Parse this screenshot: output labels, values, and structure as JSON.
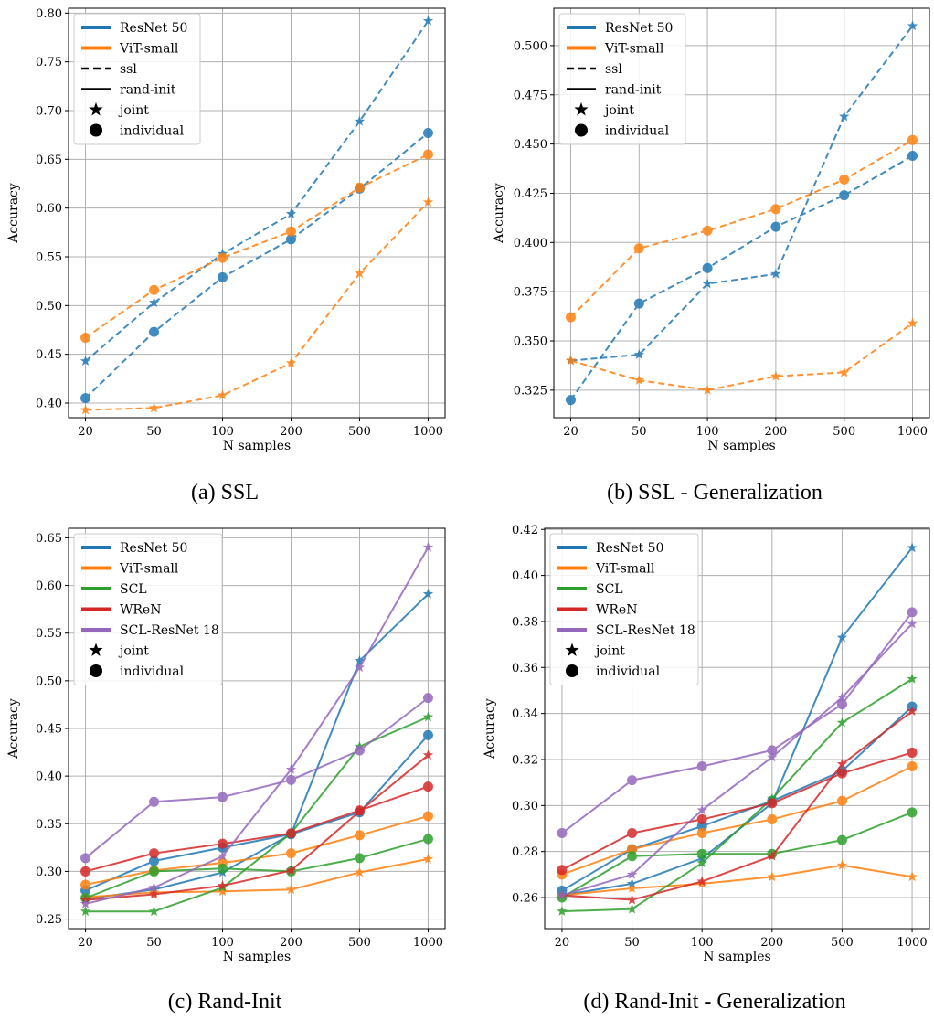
{
  "colors": {
    "ResNet 50": "#1f77b4",
    "ViT-small": "#ff7f0e",
    "SCL": "#2ca02c",
    "WReN": "#d62728",
    "SCL-ResNet 18": "#9467bd"
  },
  "chart_data": [
    {
      "type": "line",
      "caption": "(a) SSL",
      "xlabel": "N samples",
      "ylabel": "Accuracy",
      "categories": [
        "20",
        "50",
        "100",
        "200",
        "500",
        "1000"
      ],
      "yticks": [
        "0.40",
        "0.45",
        "0.50",
        "0.55",
        "0.60",
        "0.65",
        "0.70",
        "0.75",
        "0.80"
      ],
      "ylim": [
        0.385,
        0.805
      ],
      "grid": true,
      "legend_position": "top-left",
      "legend": [
        {
          "label": "ResNet 50",
          "kind": "color",
          "color": "#1f77b4"
        },
        {
          "label": "ViT-small",
          "kind": "color",
          "color": "#ff7f0e"
        },
        {
          "label": "ssl",
          "kind": "dashed"
        },
        {
          "label": "rand-init",
          "kind": "solid"
        },
        {
          "label": "joint",
          "kind": "star"
        },
        {
          "label": "individual",
          "kind": "circle"
        }
      ],
      "series": [
        {
          "model": "ResNet 50",
          "style": "dashed",
          "marker": "circle",
          "values": [
            0.405,
            0.473,
            0.529,
            0.568,
            0.62,
            0.677
          ]
        },
        {
          "model": "ResNet 50",
          "style": "dashed",
          "marker": "star",
          "values": [
            0.443,
            0.503,
            0.553,
            0.594,
            0.689,
            0.792
          ]
        },
        {
          "model": "ViT-small",
          "style": "dashed",
          "marker": "circle",
          "values": [
            0.467,
            0.516,
            0.549,
            0.576,
            0.621,
            0.655
          ]
        },
        {
          "model": "ViT-small",
          "style": "dashed",
          "marker": "star",
          "values": [
            0.393,
            0.395,
            0.408,
            0.441,
            0.533,
            0.606
          ]
        }
      ]
    },
    {
      "type": "line",
      "caption": "(b) SSL - Generalization",
      "xlabel": "N samples",
      "ylabel": "Accuracy",
      "categories": [
        "20",
        "50",
        "100",
        "200",
        "500",
        "1000"
      ],
      "yticks": [
        "0.325",
        "0.350",
        "0.375",
        "0.400",
        "0.425",
        "0.450",
        "0.475",
        "0.500"
      ],
      "ylim": [
        0.311,
        0.519
      ],
      "grid": true,
      "legend_position": "top-left",
      "legend": [
        {
          "label": "ResNet 50",
          "kind": "color",
          "color": "#1f77b4"
        },
        {
          "label": "ViT-small",
          "kind": "color",
          "color": "#ff7f0e"
        },
        {
          "label": "ssl",
          "kind": "dashed"
        },
        {
          "label": "rand-init",
          "kind": "solid"
        },
        {
          "label": "joint",
          "kind": "star"
        },
        {
          "label": "individual",
          "kind": "circle"
        }
      ],
      "series": [
        {
          "model": "ResNet 50",
          "style": "dashed",
          "marker": "circle",
          "values": [
            0.32,
            0.369,
            0.387,
            0.408,
            0.424,
            0.444
          ]
        },
        {
          "model": "ResNet 50",
          "style": "dashed",
          "marker": "star",
          "values": [
            0.34,
            0.343,
            0.379,
            0.384,
            0.464,
            0.51
          ]
        },
        {
          "model": "ViT-small",
          "style": "dashed",
          "marker": "circle",
          "values": [
            0.362,
            0.397,
            0.406,
            0.417,
            0.432,
            0.452
          ]
        },
        {
          "model": "ViT-small",
          "style": "dashed",
          "marker": "star",
          "values": [
            0.34,
            0.33,
            0.325,
            0.332,
            0.334,
            0.359
          ]
        }
      ]
    },
    {
      "type": "line",
      "caption": "(c) Rand-Init",
      "xlabel": "N samples",
      "ylabel": "Accuracy",
      "categories": [
        "20",
        "50",
        "100",
        "200",
        "500",
        "1000"
      ],
      "yticks": [
        "0.25",
        "0.30",
        "0.35",
        "0.40",
        "0.45",
        "0.50",
        "0.55",
        "0.60",
        "0.65"
      ],
      "ylim": [
        0.24,
        0.66
      ],
      "grid": true,
      "legend_position": "top-left",
      "legend": [
        {
          "label": "ResNet 50",
          "kind": "color",
          "color": "#1f77b4"
        },
        {
          "label": "ViT-small",
          "kind": "color",
          "color": "#ff7f0e"
        },
        {
          "label": "SCL",
          "kind": "color",
          "color": "#2ca02c"
        },
        {
          "label": "WReN",
          "kind": "color",
          "color": "#d62728"
        },
        {
          "label": "SCL-ResNet 18",
          "kind": "color",
          "color": "#9467bd"
        },
        {
          "label": "joint",
          "kind": "star"
        },
        {
          "label": "individual",
          "kind": "circle"
        }
      ],
      "series": [
        {
          "model": "ResNet 50",
          "style": "solid",
          "marker": "circle",
          "values": [
            0.28,
            0.311,
            0.325,
            0.339,
            0.362,
            0.443
          ]
        },
        {
          "model": "ResNet 50",
          "style": "solid",
          "marker": "star",
          "values": [
            0.271,
            0.281,
            0.299,
            0.339,
            0.521,
            0.591
          ]
        },
        {
          "model": "ViT-small",
          "style": "solid",
          "marker": "circle",
          "values": [
            0.286,
            0.301,
            0.309,
            0.319,
            0.338,
            0.358
          ]
        },
        {
          "model": "ViT-small",
          "style": "solid",
          "marker": "star",
          "values": [
            0.273,
            0.278,
            0.279,
            0.281,
            0.299,
            0.313
          ]
        },
        {
          "model": "SCL",
          "style": "solid",
          "marker": "circle",
          "values": [
            0.272,
            0.3,
            0.303,
            0.3,
            0.314,
            0.334
          ]
        },
        {
          "model": "SCL",
          "style": "solid",
          "marker": "star",
          "values": [
            0.258,
            0.258,
            0.283,
            0.34,
            0.431,
            0.462
          ]
        },
        {
          "model": "WReN",
          "style": "solid",
          "marker": "circle",
          "values": [
            0.3,
            0.319,
            0.329,
            0.34,
            0.364,
            0.389
          ]
        },
        {
          "model": "WReN",
          "style": "solid",
          "marker": "star",
          "values": [
            0.27,
            0.276,
            0.285,
            0.301,
            0.363,
            0.422
          ]
        },
        {
          "model": "SCL-ResNet 18",
          "style": "solid",
          "marker": "circle",
          "values": [
            0.314,
            0.373,
            0.378,
            0.396,
            0.427,
            0.482
          ]
        },
        {
          "model": "SCL-ResNet 18",
          "style": "solid",
          "marker": "star",
          "values": [
            0.266,
            0.283,
            0.316,
            0.407,
            0.514,
            0.64
          ]
        }
      ]
    },
    {
      "type": "line",
      "caption": "(d) Rand-Init - Generalization",
      "xlabel": "N samples",
      "ylabel": "Accuracy",
      "categories": [
        "20",
        "50",
        "100",
        "200",
        "500",
        "1000"
      ],
      "yticks": [
        "0.26",
        "0.28",
        "0.30",
        "0.32",
        "0.34",
        "0.36",
        "0.38",
        "0.40",
        "0.42"
      ],
      "ylim": [
        0.2465,
        0.4205
      ],
      "grid": true,
      "legend_position": "top-left",
      "legend": [
        {
          "label": "ResNet 50",
          "kind": "color",
          "color": "#1f77b4"
        },
        {
          "label": "ViT-small",
          "kind": "color",
          "color": "#ff7f0e"
        },
        {
          "label": "SCL",
          "kind": "color",
          "color": "#2ca02c"
        },
        {
          "label": "WReN",
          "kind": "color",
          "color": "#d62728"
        },
        {
          "label": "SCL-ResNet 18",
          "kind": "color",
          "color": "#9467bd"
        },
        {
          "label": "joint",
          "kind": "star"
        },
        {
          "label": "individual",
          "kind": "circle"
        }
      ],
      "series": [
        {
          "model": "ResNet 50",
          "style": "solid",
          "marker": "circle",
          "values": [
            0.263,
            0.281,
            0.291,
            0.302,
            0.315,
            0.343
          ]
        },
        {
          "model": "ResNet 50",
          "style": "solid",
          "marker": "star",
          "values": [
            0.261,
            0.266,
            0.277,
            0.301,
            0.373,
            0.412
          ]
        },
        {
          "model": "ViT-small",
          "style": "solid",
          "marker": "circle",
          "values": [
            0.27,
            0.281,
            0.288,
            0.294,
            0.302,
            0.317
          ]
        },
        {
          "model": "ViT-small",
          "style": "solid",
          "marker": "star",
          "values": [
            0.261,
            0.264,
            0.266,
            0.269,
            0.274,
            0.269
          ]
        },
        {
          "model": "SCL",
          "style": "solid",
          "marker": "circle",
          "values": [
            0.26,
            0.278,
            0.279,
            0.279,
            0.285,
            0.297
          ]
        },
        {
          "model": "SCL",
          "style": "solid",
          "marker": "star",
          "values": [
            0.254,
            0.255,
            0.275,
            0.303,
            0.336,
            0.355
          ]
        },
        {
          "model": "WReN",
          "style": "solid",
          "marker": "circle",
          "values": [
            0.272,
            0.288,
            0.294,
            0.301,
            0.314,
            0.323
          ]
        },
        {
          "model": "WReN",
          "style": "solid",
          "marker": "star",
          "values": [
            0.261,
            0.259,
            0.267,
            0.278,
            0.318,
            0.341
          ]
        },
        {
          "model": "SCL-ResNet 18",
          "style": "solid",
          "marker": "circle",
          "values": [
            0.288,
            0.311,
            0.317,
            0.324,
            0.344,
            0.384
          ]
        },
        {
          "model": "SCL-ResNet 18",
          "style": "solid",
          "marker": "star",
          "values": [
            0.261,
            0.27,
            0.298,
            0.321,
            0.347,
            0.379
          ]
        }
      ]
    }
  ]
}
